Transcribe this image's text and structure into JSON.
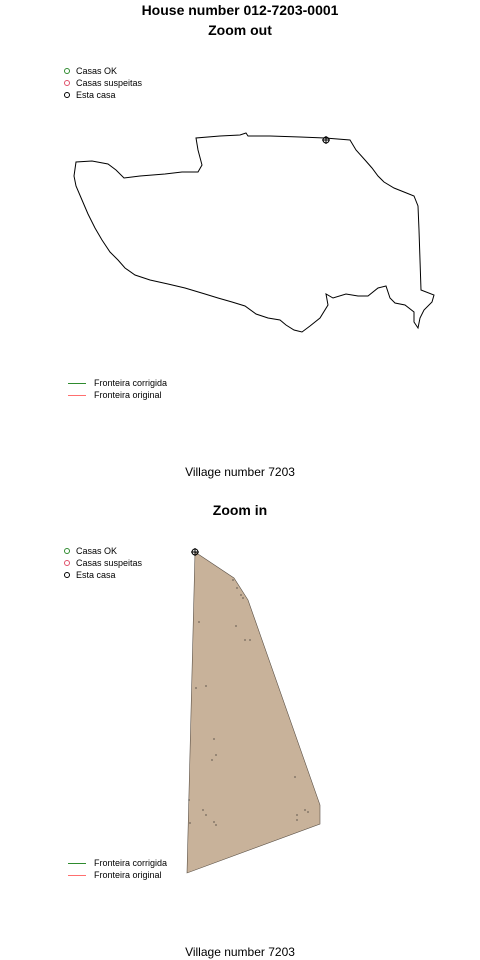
{
  "colors": {
    "casas_ok": "#2e8b2e",
    "casas_suspeitas": "#e0506a",
    "esta_casa": "#000000",
    "fronteira_corrigida": "#2e8b2e",
    "fronteira_original": "#ff6f6f",
    "zoom_in_fill": "#c8b29a"
  },
  "page_title": "House number 012-7203-0001",
  "zoom_out": {
    "title": "Zoom out",
    "point_legend": {
      "ok": "Casas OK",
      "suspect": "Casas suspeitas",
      "this_house": "Esta casa"
    },
    "line_legend": {
      "corrected": "Fronteira corrigida",
      "original": "Fronteira original"
    },
    "caption": "Village number 7203"
  },
  "zoom_in": {
    "title": "Zoom in",
    "point_legend": {
      "ok": "Casas OK",
      "suspect": "Casas suspeitas",
      "this_house": "Esta casa"
    },
    "line_legend": {
      "corrected": "Fronteira corrigida",
      "original": "Fronteira original"
    },
    "caption": "Village number 7203"
  }
}
